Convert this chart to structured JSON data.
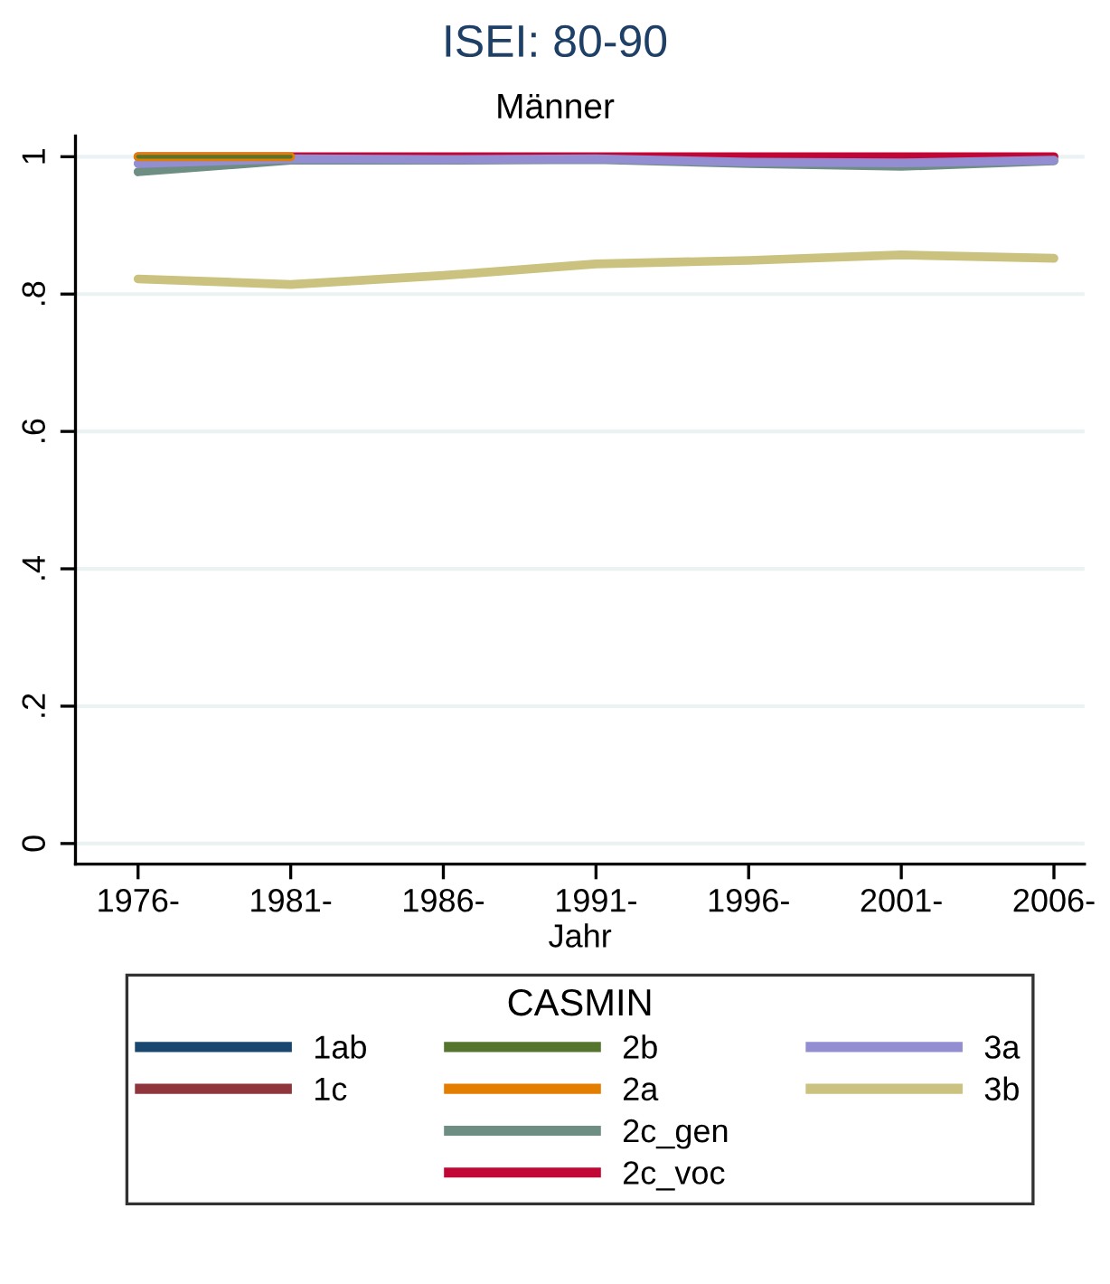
{
  "chart_data": {
    "type": "line",
    "title": "ISEI: 80-90",
    "subtitle": "Männer",
    "xlabel": "Jahr",
    "legend_title": "CASMIN",
    "categories": [
      "1976-",
      "1981-",
      "1986-",
      "1991-",
      "1996-",
      "2001-",
      "2006-"
    ],
    "series": [
      {
        "name": "1ab",
        "color": "#1a476f",
        "values": [
          null,
          null,
          null,
          null,
          null,
          null,
          null
        ]
      },
      {
        "name": "1c",
        "color": "#90353b",
        "values": [
          null,
          null,
          null,
          null,
          null,
          null,
          null
        ]
      },
      {
        "name": "2b",
        "color": "#55752f",
        "values": [
          1,
          1,
          null,
          null,
          null,
          null,
          null
        ]
      },
      {
        "name": "2a",
        "color": "#e37e00",
        "values": [
          1,
          1,
          null,
          null,
          null,
          null,
          null
        ]
      },
      {
        "name": "2c_gen",
        "color": "#6e8e84",
        "values": [
          0.978,
          0.995,
          0.995,
          0.996,
          0.99,
          0.986,
          0.994
        ]
      },
      {
        "name": "2c_voc",
        "color": "#c10534",
        "values": [
          1,
          1,
          1,
          1,
          1,
          1,
          1
        ]
      },
      {
        "name": "3a",
        "color": "#938dd2",
        "values": [
          0.99,
          0.997,
          0.996,
          0.997,
          0.992,
          0.991,
          0.995
        ]
      },
      {
        "name": "3b",
        "color": "#cac27e",
        "values": [
          0.822,
          0.814,
          0.827,
          0.844,
          0.849,
          0.857,
          0.852
        ]
      }
    ],
    "ylim": [
      -0.03,
      1.03
    ],
    "yticks": [
      0,
      {
        "value": 0.2,
        "label": ".2"
      },
      {
        "value": 0.4,
        "label": ".4"
      },
      {
        "value": 0.6,
        "label": ".6"
      },
      {
        "value": 0.8,
        "label": ".8"
      },
      1
    ],
    "grid": "y",
    "legend": "bottom",
    "marker": "none",
    "line_style": "solid"
  }
}
